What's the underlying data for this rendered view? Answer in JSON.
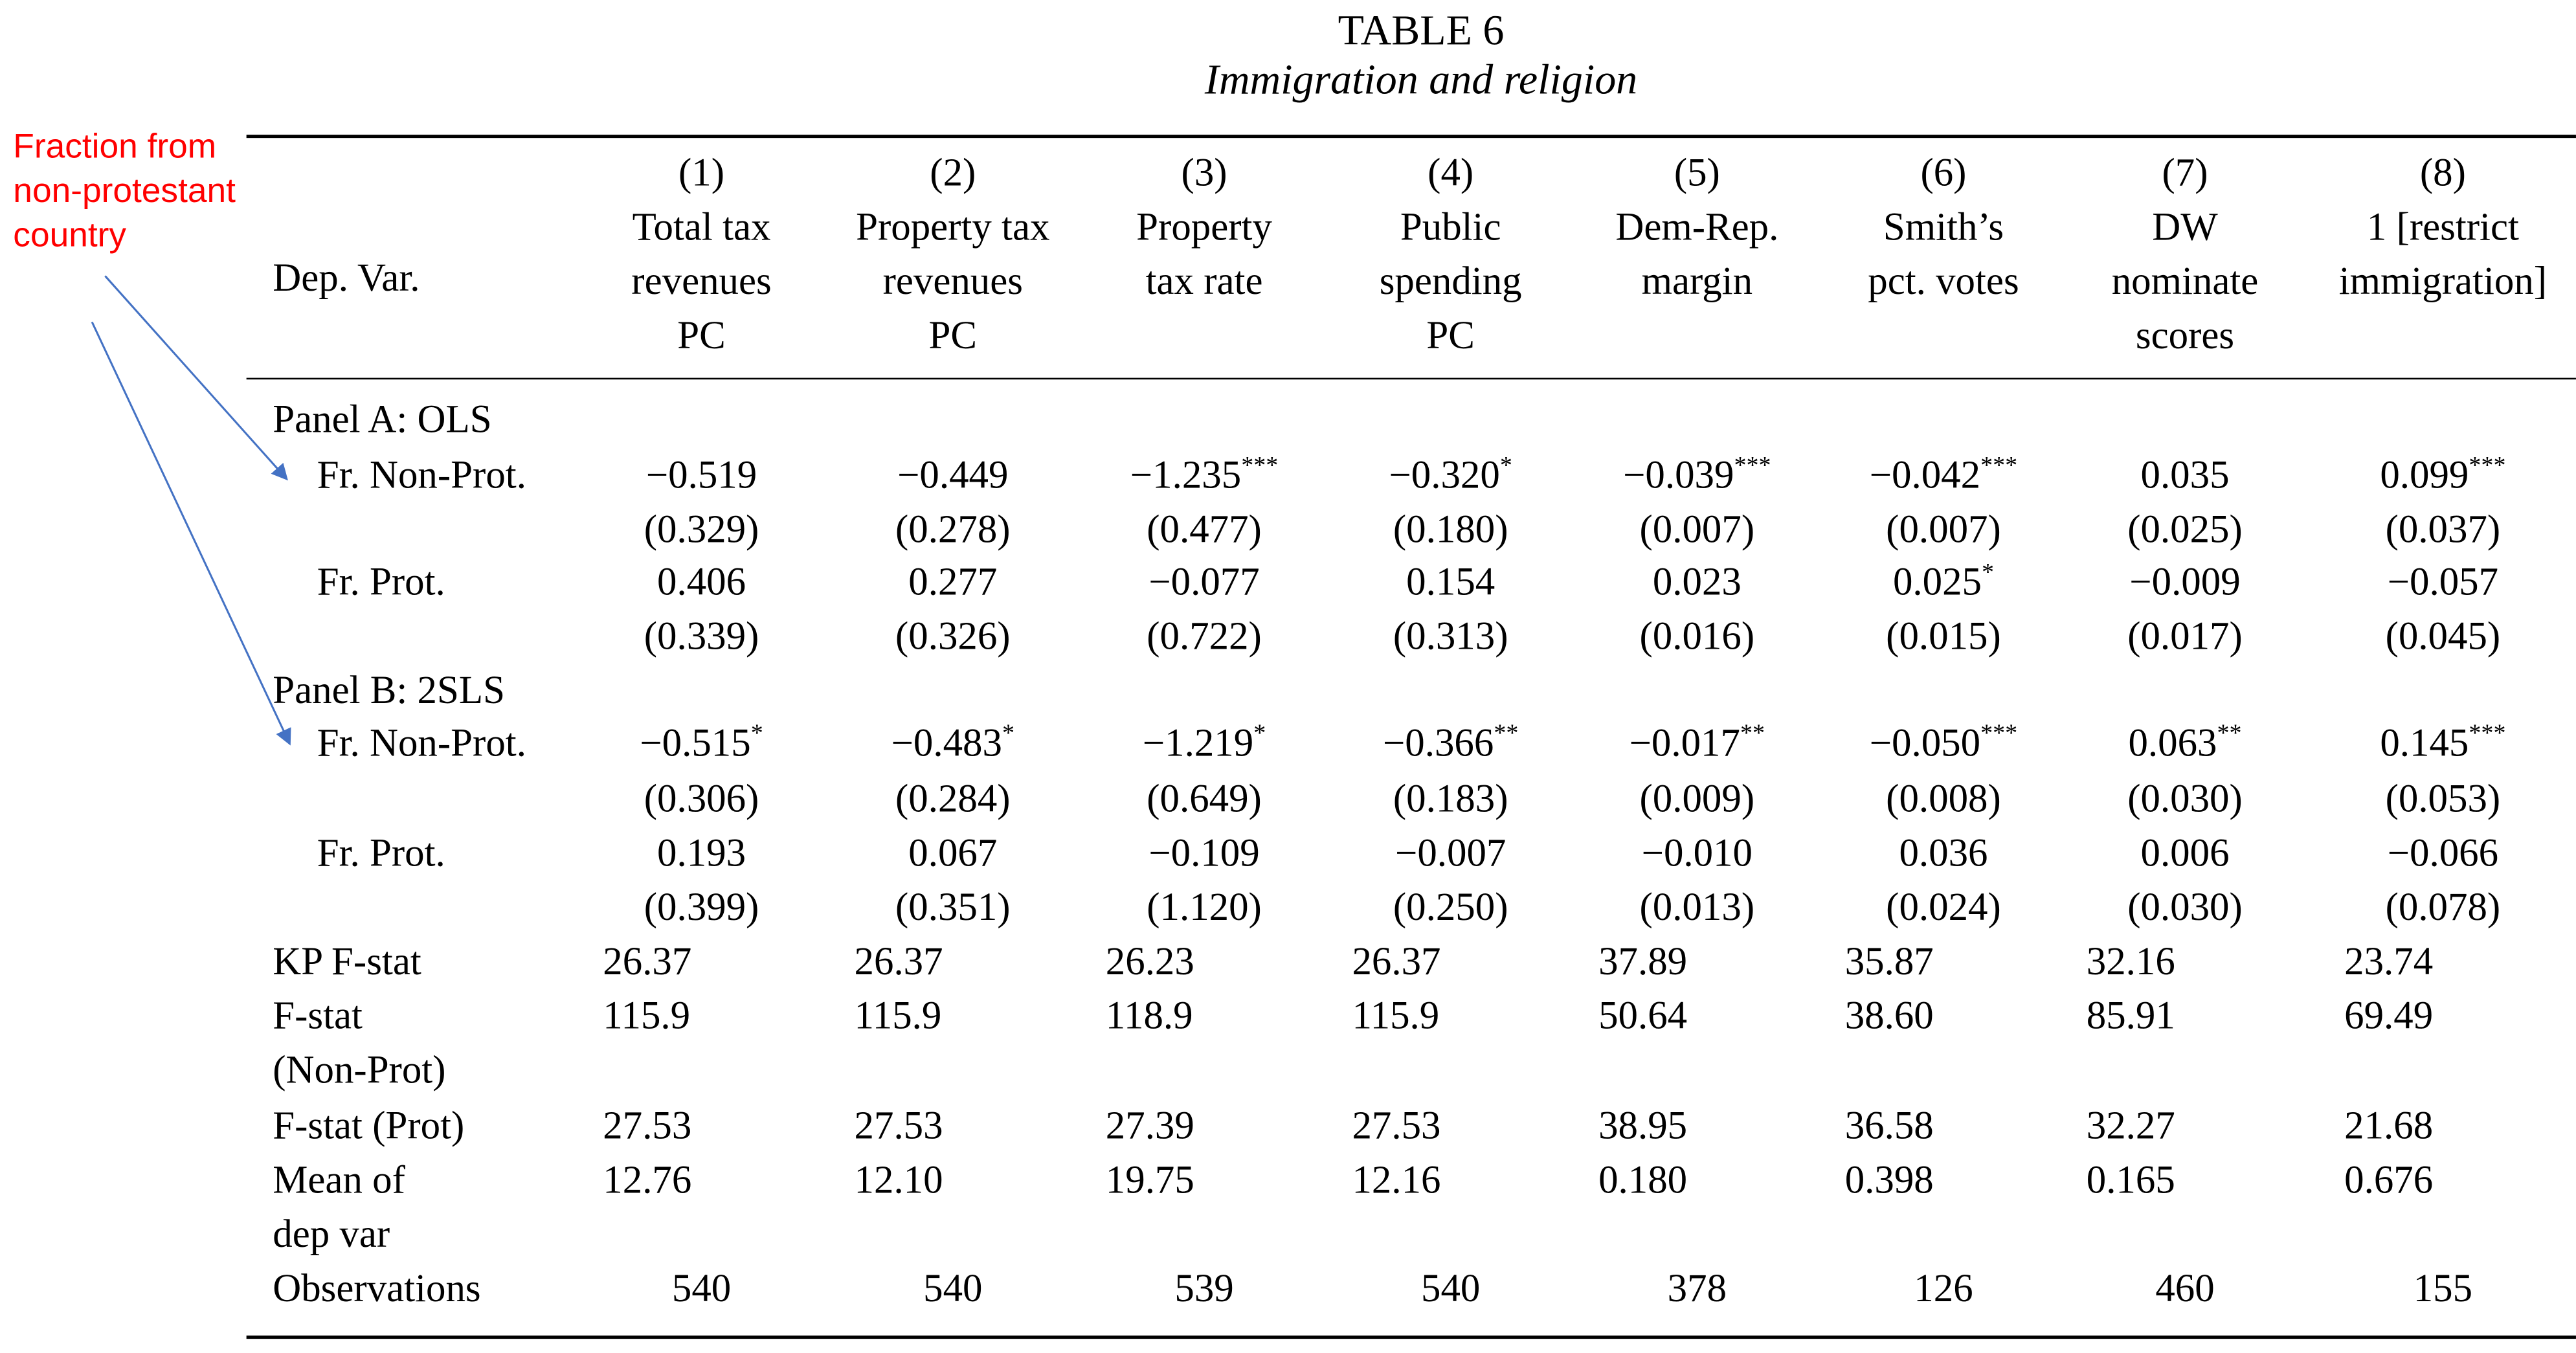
{
  "table": {
    "title": "TABLE 6",
    "subtitle": "Immigration and religion",
    "dep_var_label": "Dep. Var.",
    "columns": [
      {
        "num": "(1)",
        "lines": [
          "Total tax",
          "revenues",
          "PC"
        ]
      },
      {
        "num": "(2)",
        "lines": [
          "Property tax",
          "revenues",
          "PC"
        ]
      },
      {
        "num": "(3)",
        "lines": [
          "Property",
          "tax rate"
        ]
      },
      {
        "num": "(4)",
        "lines": [
          "Public",
          "spending",
          "PC"
        ]
      },
      {
        "num": "(5)",
        "lines": [
          "Dem-Rep.",
          "margin"
        ]
      },
      {
        "num": "(6)",
        "lines": [
          "Smith’s",
          "pct. votes"
        ]
      },
      {
        "num": "(7)",
        "lines": [
          "DW",
          "nominate",
          "scores"
        ]
      },
      {
        "num": "(8)",
        "lines": [
          "1 [restrict",
          "immigration]"
        ]
      }
    ],
    "panel_a_label": "Panel A: OLS",
    "panel_b_label": "Panel B: 2SLS",
    "row_labels": {
      "nonprot": "Fr. Non-Prot.",
      "prot": "Fr. Prot.",
      "kp_fstat": "KP F-stat",
      "fstat_nonprot_1": "F-stat",
      "fstat_nonprot_2": "(Non-Prot)",
      "fstat_prot": "F-stat (Prot)",
      "mean_1": "Mean of",
      "mean_2": "dep var",
      "obs": "Observations"
    },
    "panel_a": {
      "nonprot_coef": [
        [
          "−0.519",
          ""
        ],
        [
          "−0.449",
          ""
        ],
        [
          "−1.235",
          "***"
        ],
        [
          "−0.320",
          "*"
        ],
        [
          "−0.039",
          "***"
        ],
        [
          "−0.042",
          "***"
        ],
        [
          "0.035",
          ""
        ],
        [
          "0.099",
          "***"
        ]
      ],
      "nonprot_se": [
        "(0.329)",
        "(0.278)",
        "(0.477)",
        "(0.180)",
        "(0.007)",
        "(0.007)",
        "(0.025)",
        "(0.037)"
      ],
      "prot_coef": [
        [
          "0.406",
          ""
        ],
        [
          "0.277",
          ""
        ],
        [
          "−0.077",
          ""
        ],
        [
          "0.154",
          ""
        ],
        [
          "0.023",
          ""
        ],
        [
          "0.025",
          "*"
        ],
        [
          "−0.009",
          ""
        ],
        [
          "−0.057",
          ""
        ]
      ],
      "prot_se": [
        "(0.339)",
        "(0.326)",
        "(0.722)",
        "(0.313)",
        "(0.016)",
        "(0.015)",
        "(0.017)",
        "(0.045)"
      ]
    },
    "panel_b": {
      "nonprot_coef": [
        [
          "−0.515",
          "*"
        ],
        [
          "−0.483",
          "*"
        ],
        [
          "−1.219",
          "*"
        ],
        [
          "−0.366",
          "**"
        ],
        [
          "−0.017",
          "**"
        ],
        [
          "−0.050",
          "***"
        ],
        [
          "0.063",
          "**"
        ],
        [
          "0.145",
          "***"
        ]
      ],
      "nonprot_se": [
        "(0.306)",
        "(0.284)",
        "(0.649)",
        "(0.183)",
        "(0.009)",
        "(0.008)",
        "(0.030)",
        "(0.053)"
      ],
      "prot_coef": [
        [
          "0.193",
          ""
        ],
        [
          "0.067",
          ""
        ],
        [
          "−0.109",
          ""
        ],
        [
          "−0.007",
          ""
        ],
        [
          "−0.010",
          ""
        ],
        [
          "0.036",
          ""
        ],
        [
          "0.006",
          ""
        ],
        [
          "−0.066",
          ""
        ]
      ],
      "prot_se": [
        "(0.399)",
        "(0.351)",
        "(1.120)",
        "(0.250)",
        "(0.013)",
        "(0.024)",
        "(0.030)",
        "(0.078)"
      ]
    },
    "kp_fstat": [
      "26.37",
      "26.37",
      "26.23",
      "26.37",
      "37.89",
      "35.87",
      "32.16",
      "23.74"
    ],
    "fstat_nonprot": [
      "115.9",
      "115.9",
      "118.9",
      "115.9",
      "50.64",
      "38.60",
      "85.91",
      "69.49"
    ],
    "fstat_prot": [
      "27.53",
      "27.53",
      "27.39",
      "27.53",
      "38.95",
      "36.58",
      "32.27",
      "21.68"
    ],
    "mean_dep_var": [
      "12.76",
      "12.10",
      "19.75",
      "12.16",
      "0.180",
      "0.398",
      "0.165",
      "0.676"
    ],
    "observations": [
      "540",
      "540",
      "539",
      "540",
      "378",
      "126",
      "460",
      "155"
    ]
  },
  "annotation": {
    "lines": [
      "Fraction from",
      "non-protestant",
      "country"
    ],
    "color": "#ff0000",
    "arrow_color": "#4472c4"
  }
}
